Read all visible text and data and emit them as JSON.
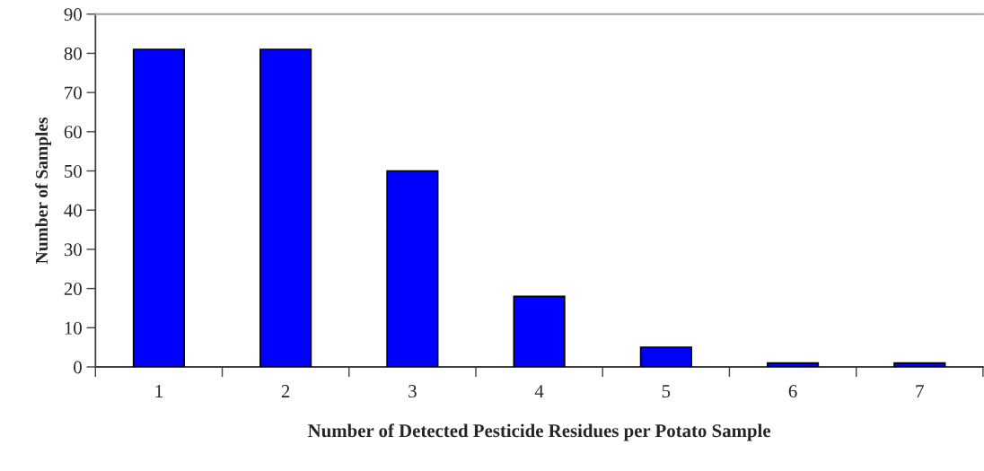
{
  "chart_data": {
    "type": "bar",
    "categories": [
      "1",
      "2",
      "3",
      "4",
      "5",
      "6",
      "7"
    ],
    "values": [
      81,
      81,
      50,
      18,
      5,
      1,
      1
    ],
    "color": "#0000ff",
    "xlabel": "Number of Detected Pesticide Residues per Potato Sample",
    "ylabel": "Number of Samples",
    "ylim": [
      0,
      90
    ],
    "yticks": [
      0,
      10,
      20,
      30,
      40,
      50,
      60,
      70,
      80,
      90
    ],
    "grid": false,
    "legend": false
  }
}
